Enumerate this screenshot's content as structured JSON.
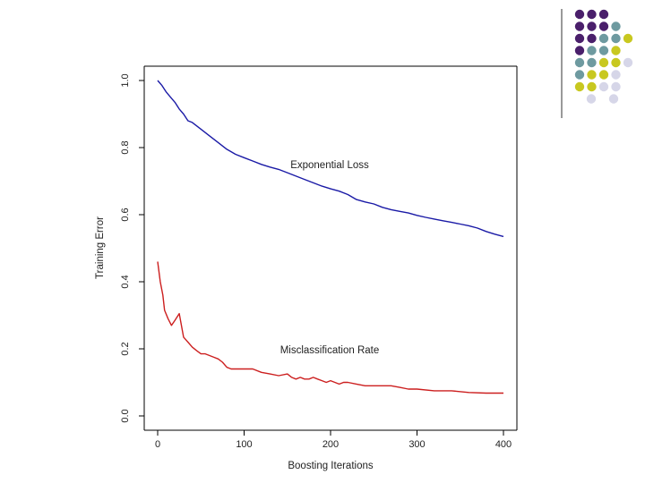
{
  "slide": {
    "dot_colors": {
      "purple": "#4a1f6b",
      "teal": "#6e9aa0",
      "yellow": "#c8c820",
      "lavender": "#d6d6e8"
    },
    "vertical_rule_color": "#333333"
  },
  "chart_data": {
    "type": "line",
    "title": "",
    "xlabel": "Boosting Iterations",
    "ylabel": "Training Error",
    "xlim": [
      0,
      400
    ],
    "ylim": [
      0.0,
      1.0
    ],
    "x_ticks": [
      "0",
      "100",
      "200",
      "300",
      "400"
    ],
    "y_ticks": [
      "0.0",
      "0.2",
      "0.4",
      "0.6",
      "0.8",
      "1.0"
    ],
    "grid": false,
    "annotations": [
      "Exponential Loss",
      "Misclassification Rate"
    ],
    "series": [
      {
        "name": "Exponential Loss",
        "color": "#1a1aa6",
        "x": [
          0,
          5,
          10,
          15,
          20,
          25,
          30,
          35,
          40,
          50,
          60,
          70,
          80,
          90,
          100,
          110,
          120,
          130,
          140,
          150,
          160,
          170,
          180,
          190,
          200,
          210,
          220,
          230,
          240,
          250,
          260,
          270,
          280,
          290,
          300,
          310,
          320,
          330,
          340,
          350,
          360,
          370,
          380,
          390,
          400
        ],
        "values": [
          1.0,
          0.985,
          0.965,
          0.95,
          0.935,
          0.915,
          0.9,
          0.88,
          0.875,
          0.855,
          0.835,
          0.815,
          0.795,
          0.78,
          0.77,
          0.76,
          0.75,
          0.742,
          0.735,
          0.725,
          0.715,
          0.705,
          0.695,
          0.685,
          0.677,
          0.67,
          0.66,
          0.645,
          0.638,
          0.632,
          0.622,
          0.615,
          0.61,
          0.605,
          0.598,
          0.592,
          0.587,
          0.582,
          0.577,
          0.572,
          0.567,
          0.56,
          0.55,
          0.542,
          0.535
        ]
      },
      {
        "name": "Misclassification Rate",
        "color": "#cc1f1f",
        "x": [
          0,
          3,
          6,
          8,
          12,
          16,
          20,
          25,
          30,
          35,
          40,
          45,
          50,
          55,
          60,
          65,
          70,
          75,
          80,
          85,
          90,
          100,
          110,
          120,
          130,
          140,
          150,
          155,
          160,
          165,
          170,
          175,
          180,
          185,
          190,
          195,
          200,
          205,
          210,
          215,
          220,
          230,
          240,
          250,
          260,
          270,
          280,
          290,
          300,
          320,
          340,
          360,
          380,
          400
        ],
        "values": [
          0.46,
          0.4,
          0.36,
          0.315,
          0.29,
          0.27,
          0.285,
          0.305,
          0.235,
          0.22,
          0.205,
          0.195,
          0.185,
          0.185,
          0.18,
          0.175,
          0.17,
          0.16,
          0.145,
          0.14,
          0.14,
          0.14,
          0.14,
          0.13,
          0.125,
          0.12,
          0.125,
          0.115,
          0.11,
          0.115,
          0.11,
          0.11,
          0.115,
          0.11,
          0.105,
          0.1,
          0.105,
          0.1,
          0.095,
          0.1,
          0.1,
          0.095,
          0.09,
          0.09,
          0.09,
          0.09,
          0.085,
          0.08,
          0.08,
          0.075,
          0.075,
          0.07,
          0.068,
          0.068
        ]
      }
    ]
  }
}
